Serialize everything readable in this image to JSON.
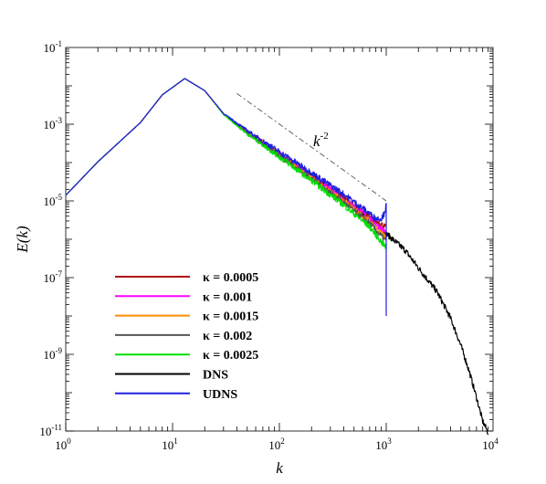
{
  "chart_data": {
    "type": "line",
    "title": "",
    "xlabel": "k",
    "ylabel": "E(k)",
    "x_scale": "log",
    "y_scale": "log",
    "xlim": [
      1,
      10000
    ],
    "ylim": [
      1e-11,
      0.1
    ],
    "x_ticks": [
      {
        "value": 1,
        "base": "10",
        "exp": "0"
      },
      {
        "value": 10,
        "base": "10",
        "exp": "1"
      },
      {
        "value": 100,
        "base": "10",
        "exp": "2"
      },
      {
        "value": 1000,
        "base": "10",
        "exp": "3"
      },
      {
        "value": 10000,
        "base": "10",
        "exp": "4"
      }
    ],
    "y_ticks": [
      {
        "value": 1e-11,
        "base": "10",
        "exp": "-11"
      },
      {
        "value": 1e-09,
        "base": "10",
        "exp": "-9"
      },
      {
        "value": 1e-07,
        "base": "10",
        "exp": "-7"
      },
      {
        "value": 1e-05,
        "base": "10",
        "exp": "-5"
      },
      {
        "value": 0.001,
        "base": "10",
        "exp": "-3"
      },
      {
        "value": 0.1,
        "base": "10",
        "exp": "-1"
      }
    ],
    "grid": false,
    "legend_position": "lower-left",
    "annotation": {
      "base": "k",
      "exp": "-2",
      "line_x": [
        40,
        1000
      ],
      "line_y": [
        0.0063,
        1e-05
      ]
    },
    "series": [
      {
        "name": "κ = 0.0005",
        "color": "#b01010",
        "x": [
          1,
          2,
          5,
          8,
          13,
          20,
          30,
          50,
          100,
          200,
          400,
          700,
          900,
          1000
        ],
        "y": [
          1.4e-05,
          0.000105,
          0.0011,
          0.0058,
          0.0155,
          0.0075,
          0.00185,
          0.00063,
          0.000168,
          4.4e-05,
          1.15e-05,
          3.8e-06,
          2.5e-06,
          2e-06
        ]
      },
      {
        "name": "κ = 0.001",
        "color": "#ff00ff",
        "x": [
          1,
          2,
          5,
          8,
          13,
          20,
          30,
          50,
          100,
          200,
          400,
          700,
          900,
          1000
        ],
        "y": [
          1.4e-05,
          0.000105,
          0.0011,
          0.0058,
          0.0155,
          0.0075,
          0.00185,
          0.00062,
          0.000165,
          4.3e-05,
          1.1e-05,
          3.5e-06,
          1.9e-06,
          1.5e-06
        ]
      },
      {
        "name": "κ = 0.0015",
        "color": "#ff8c00",
        "x": [
          1,
          2,
          5,
          8,
          13,
          20,
          30,
          50,
          100,
          200,
          400,
          700,
          900,
          1000
        ],
        "y": [
          1.4e-05,
          0.000105,
          0.0011,
          0.0058,
          0.0155,
          0.0075,
          0.00184,
          0.0006,
          0.000158,
          4e-05,
          9.8e-06,
          2.9e-06,
          1.4e-06,
          1.1e-06
        ]
      },
      {
        "name": "κ = 0.002",
        "color": "#555555",
        "x": [
          1,
          2,
          5,
          8,
          13,
          20,
          30,
          50,
          100,
          200,
          400,
          700,
          900,
          1000
        ],
        "y": [
          1.4e-05,
          0.000105,
          0.0011,
          0.0058,
          0.0155,
          0.0075,
          0.00183,
          0.00059,
          0.000152,
          3.8e-05,
          9.1e-06,
          2.6e-06,
          1.2e-06,
          9e-07
        ]
      },
      {
        "name": "κ = 0.0025",
        "color": "#00e000",
        "x": [
          1,
          2,
          5,
          8,
          13,
          20,
          30,
          50,
          100,
          200,
          400,
          700,
          900,
          1000
        ],
        "y": [
          1.4e-05,
          0.000105,
          0.0011,
          0.0058,
          0.0155,
          0.0075,
          0.0018,
          0.00056,
          0.000142,
          3.4e-05,
          7.8e-06,
          2.1e-06,
          8.5e-07,
          6e-07
        ]
      },
      {
        "name": "DNS",
        "color": "#000000",
        "x": [
          1,
          2,
          5,
          8,
          13,
          20,
          30,
          50,
          100,
          200,
          400,
          700,
          1000,
          1500,
          2000,
          3000,
          4000,
          5000,
          6000,
          7000,
          8000,
          9000
        ],
        "y": [
          1.4e-05,
          0.000105,
          0.0011,
          0.0058,
          0.0155,
          0.0075,
          0.00185,
          0.00063,
          0.000168,
          4.4e-05,
          1.1e-05,
          3.6e-06,
          1.4e-06,
          5.2e-07,
          1.8e-07,
          4.2e-08,
          8.8e-09,
          1.7e-09,
          3.5e-10,
          7.5e-11,
          1.8e-11,
          9e-12
        ]
      },
      {
        "name": "UDNS",
        "color": "#2020e0",
        "x": [
          1,
          2,
          5,
          8,
          13,
          20,
          30,
          50,
          100,
          200,
          400,
          600,
          800,
          900,
          950,
          1000,
          1000
        ],
        "y": [
          1.4e-05,
          0.000105,
          0.0011,
          0.0058,
          0.0155,
          0.0075,
          0.0019,
          0.00068,
          0.00019,
          5.4e-05,
          1.5e-05,
          6.5e-06,
          3.5e-06,
          3.5e-06,
          4.5e-06,
          7.5e-06,
          1e-08
        ]
      }
    ]
  }
}
